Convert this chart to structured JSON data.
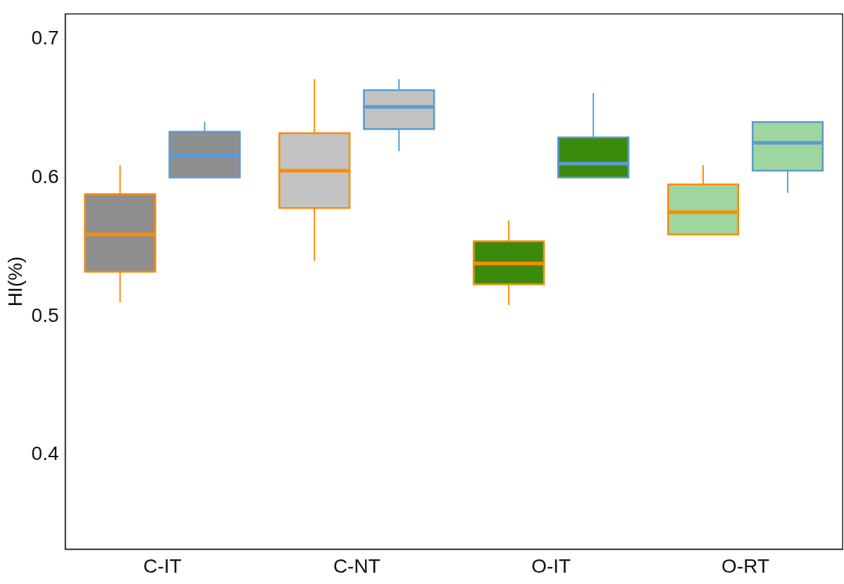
{
  "chart_data": {
    "type": "box",
    "ylabel": "HI(%)",
    "categories": [
      "C-IT",
      "C-NT",
      "O-IT",
      "O-RT"
    ],
    "ylim": [
      0.332,
      0.718
    ],
    "yticks": [
      0.4,
      0.5,
      0.6,
      0.7
    ],
    "series": [
      {
        "color": "#ff8c00",
        "colors": [
          "#8f8f8f",
          "#c3c3c3",
          "#3c8a0c",
          "#9fd59f"
        ],
        "boxes": [
          {
            "low": 0.51,
            "q1": 0.532,
            "median": 0.559,
            "q3": 0.588,
            "high": 0.609
          },
          {
            "low": 0.54,
            "q1": 0.578,
            "median": 0.605,
            "q3": 0.632,
            "high": 0.671
          },
          {
            "low": 0.508,
            "q1": 0.523,
            "median": 0.538,
            "q3": 0.554,
            "high": 0.569
          },
          {
            "low": 0.559,
            "q1": 0.559,
            "median": 0.575,
            "q3": 0.595,
            "high": 0.609
          }
        ]
      },
      {
        "color": "#5b9bd5",
        "colors": [
          "#8f8f8f",
          "#c3c3c3",
          "#3c8a0c",
          "#9fd59f"
        ],
        "boxes": [
          {
            "low": 0.6,
            "q1": 0.6,
            "median": 0.616,
            "q3": 0.633,
            "high": 0.64
          },
          {
            "low": 0.619,
            "q1": 0.635,
            "median": 0.651,
            "q3": 0.663,
            "high": 0.671
          },
          {
            "low": 0.6,
            "q1": 0.6,
            "median": 0.61,
            "q3": 0.629,
            "high": 0.661
          },
          {
            "low": 0.589,
            "q1": 0.605,
            "median": 0.625,
            "q3": 0.64,
            "high": 0.64
          }
        ]
      }
    ]
  }
}
